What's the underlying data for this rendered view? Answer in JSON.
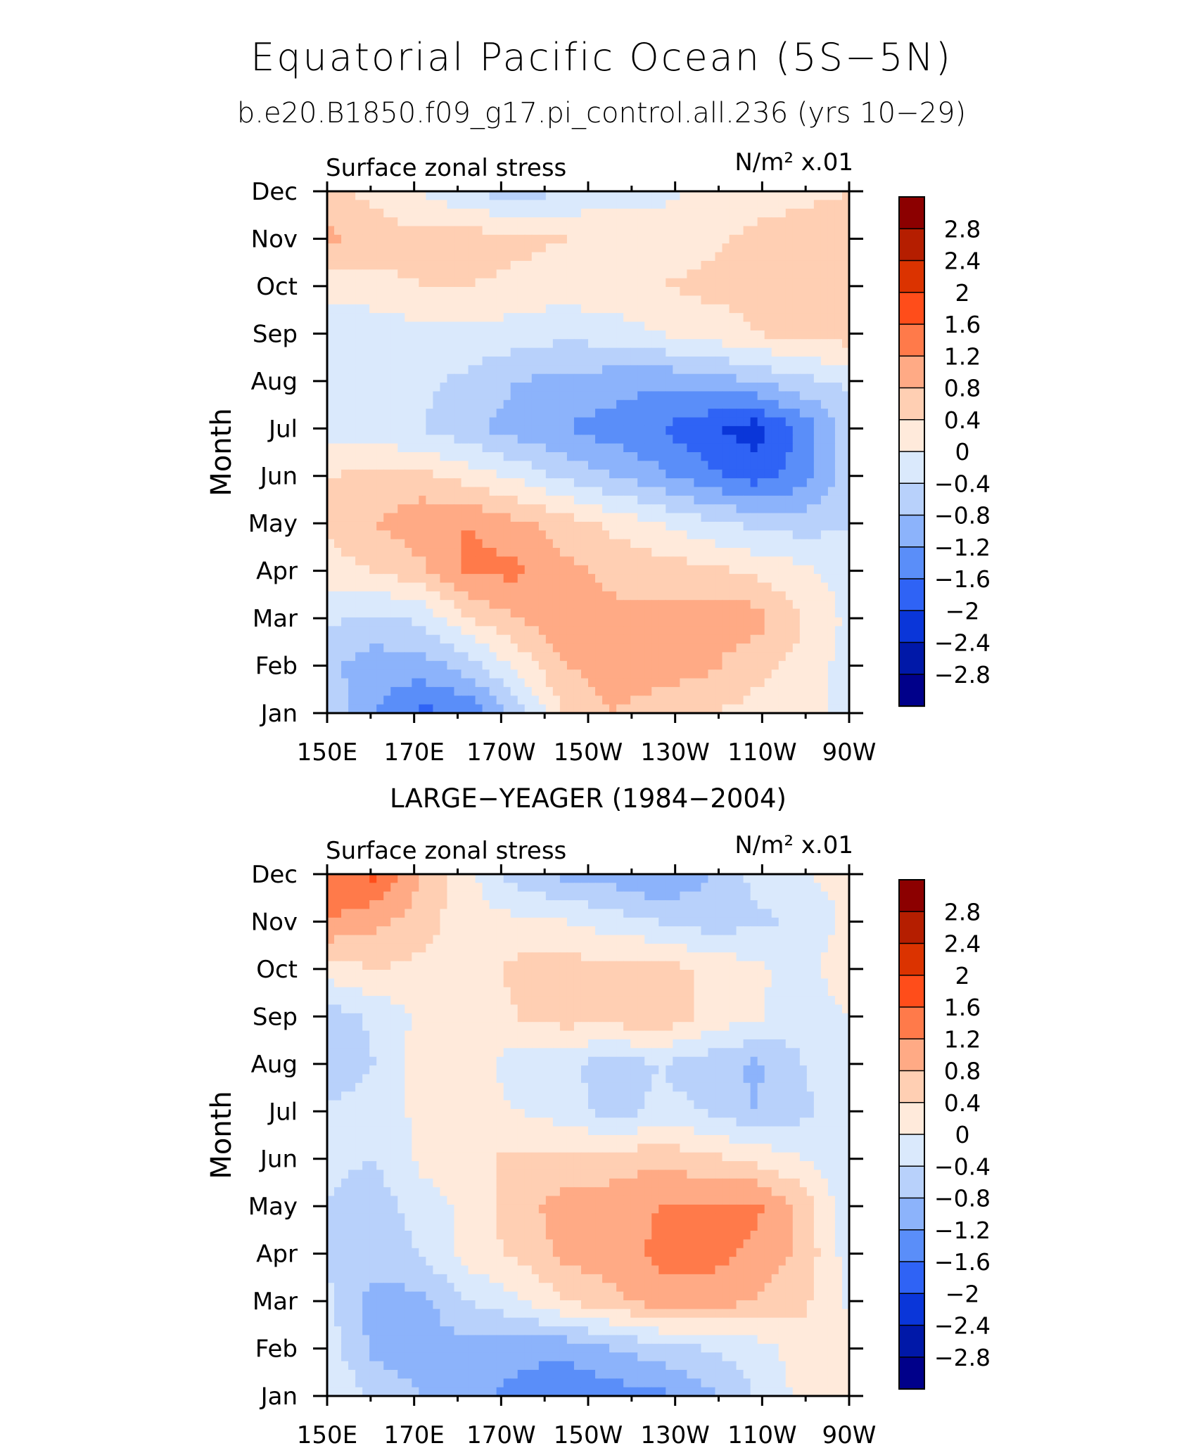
{
  "figure": {
    "title": "Equatorial Pacific Ocean (5S−5N)",
    "subtitle": "b.e20.B1850.f09_g17.pi_control.all.236 (yrs 10−29)"
  },
  "colorbar": {
    "levels": [
      "2.8",
      "2.4",
      "2",
      "1.6",
      "1.2",
      "0.8",
      "0.4",
      "0",
      "−0.4",
      "−0.8",
      "−1.2",
      "−1.6",
      "−2",
      "−2.4",
      "−2.8"
    ],
    "colors": [
      "#8c0000",
      "#b51e00",
      "#db3300",
      "#ff4d1a",
      "#ff7a4a",
      "#ffaa85",
      "#ffcfb3",
      "#ffeadb",
      "#dae9fc",
      "#b8d1fb",
      "#8cb3fb",
      "#5a8ef9",
      "#2f63f5",
      "#0a36d9",
      "#0018a8",
      "#00008a"
    ]
  },
  "chart_data": [
    {
      "type": "heatmap",
      "panel_title": "",
      "left_label": "Surface zonal stress",
      "right_label": "N/m² x.01",
      "xlabel": "",
      "ylabel": "Month",
      "x_ticks": [
        "150E",
        "170E",
        "170W",
        "150W",
        "130W",
        "110W",
        "90W"
      ],
      "y_ticks": [
        "Jan",
        "Feb",
        "Mar",
        "Apr",
        "May",
        "Jun",
        "Jul",
        "Aug",
        "Sep",
        "Oct",
        "Nov",
        "Dec"
      ],
      "x_lon_range": [
        150,
        270
      ],
      "contour_levels": [
        -2.8,
        -2.4,
        -2,
        -1.6,
        -1.2,
        -0.8,
        -0.4,
        0,
        0.4,
        0.8,
        1.2,
        1.6,
        2,
        2.4,
        2.8
      ],
      "values": [
        [
          -0.5,
          -1.2,
          -1.7,
          -1.5,
          -0.6,
          0.4,
          0.8,
          0.6,
          0.4,
          0.3,
          0.2,
          -0.2
        ],
        [
          -0.7,
          -1.0,
          -1.0,
          -0.6,
          0.1,
          0.8,
          1.0,
          1.0,
          0.9,
          0.5,
          0.3,
          -0.2
        ],
        [
          -0.3,
          -0.5,
          -0.3,
          0.4,
          0.8,
          1.1,
          0.9,
          0.9,
          1.0,
          1.0,
          0.4,
          -0.1
        ],
        [
          0.2,
          0.4,
          0.7,
          1.3,
          1.3,
          0.9,
          0.7,
          0.6,
          0.5,
          0.3,
          0.1,
          -0.2
        ],
        [
          0.5,
          0.8,
          1.1,
          1.2,
          0.9,
          0.6,
          0.3,
          0.0,
          -0.3,
          -0.5,
          -0.6,
          -0.4
        ],
        [
          0.4,
          0.5,
          0.5,
          0.2,
          -0.1,
          -0.5,
          -0.8,
          -1.1,
          -1.5,
          -1.8,
          -1.4,
          -0.6
        ],
        [
          -0.2,
          -0.3,
          -0.4,
          -0.7,
          -1.0,
          -1.2,
          -1.4,
          -1.6,
          -1.9,
          -2.2,
          -1.5,
          -0.6
        ],
        [
          -0.4,
          -0.4,
          -0.3,
          -0.5,
          -0.8,
          -0.9,
          -1.0,
          -1.1,
          -1.0,
          -0.8,
          -0.5,
          -0.3
        ],
        [
          -0.4,
          -0.3,
          -0.1,
          -0.1,
          -0.2,
          -0.3,
          -0.2,
          0.0,
          0.2,
          0.4,
          0.5,
          0.6
        ],
        [
          0.2,
          0.3,
          0.4,
          0.4,
          0.3,
          0.2,
          0.3,
          0.4,
          0.5,
          0.5,
          0.6,
          0.6
        ],
        [
          0.9,
          0.6,
          0.5,
          0.6,
          0.5,
          0.4,
          0.4,
          0.2,
          0.3,
          0.5,
          0.6,
          0.6
        ],
        [
          0.5,
          0.3,
          0.0,
          -0.4,
          -0.6,
          -0.4,
          -0.2,
          -0.1,
          0.1,
          0.2,
          0.3,
          0.4
        ]
      ]
    },
    {
      "type": "heatmap",
      "panel_title": "LARGE−YEAGER (1984−2004)",
      "left_label": "Surface zonal stress",
      "right_label": "N/m² x.01",
      "xlabel": "",
      "ylabel": "Month",
      "x_ticks": [
        "150E",
        "170E",
        "170W",
        "150W",
        "130W",
        "110W",
        "90W"
      ],
      "y_ticks": [
        "Jan",
        "Feb",
        "Mar",
        "Apr",
        "May",
        "Jun",
        "Jul",
        "Aug",
        "Sep",
        "Oct",
        "Nov",
        "Dec"
      ],
      "x_lon_range": [
        150,
        270
      ],
      "contour_levels": [
        -2.8,
        -2.4,
        -2,
        -1.6,
        -1.2,
        -0.8,
        -0.4,
        0,
        0.4,
        0.8,
        1.2,
        1.6,
        2,
        2.4,
        2.8
      ],
      "values": [
        [
          0.0,
          -0.5,
          -0.8,
          -1.1,
          -1.3,
          -1.5,
          -1.4,
          -1.3,
          -0.9,
          -0.4,
          0.1,
          0.1
        ],
        [
          -0.2,
          -0.9,
          -1.0,
          -0.9,
          -1.1,
          -1.1,
          -0.8,
          -0.6,
          -0.4,
          -0.2,
          0.2,
          0.2
        ],
        [
          -0.3,
          -1.0,
          -0.9,
          -0.4,
          -0.1,
          0.4,
          0.7,
          1.0,
          1.0,
          0.8,
          0.5,
          -0.1
        ],
        [
          -0.5,
          -0.6,
          -0.4,
          0.2,
          0.5,
          0.9,
          1.0,
          1.3,
          1.4,
          1.1,
          0.7,
          -0.2
        ],
        [
          -0.4,
          -0.6,
          -0.2,
          0.1,
          0.6,
          1.0,
          1.0,
          1.2,
          1.3,
          1.3,
          0.7,
          -0.3
        ],
        [
          -0.3,
          -0.4,
          0.1,
          0.3,
          0.5,
          0.5,
          0.6,
          0.7,
          0.5,
          0.3,
          0.0,
          -0.3
        ],
        [
          -0.3,
          -0.2,
          0.1,
          0.2,
          0.0,
          -0.2,
          -0.6,
          -0.3,
          -0.4,
          -0.8,
          -0.5,
          -0.2
        ],
        [
          -0.8,
          -0.4,
          0.2,
          0.2,
          -0.2,
          -0.3,
          -0.6,
          -0.4,
          -0.6,
          -0.9,
          -0.4,
          -0.1
        ],
        [
          -0.6,
          -0.3,
          0.1,
          0.1,
          0.4,
          0.6,
          0.6,
          0.8,
          0.3,
          0.1,
          -0.3,
          0.0
        ],
        [
          0.2,
          0.4,
          0.3,
          0.2,
          0.5,
          0.6,
          0.5,
          0.6,
          0.3,
          0.1,
          -0.2,
          0.3
        ],
        [
          1.2,
          0.9,
          0.6,
          0.1,
          0.1,
          0.0,
          -0.2,
          -0.4,
          -0.6,
          -0.5,
          -0.3,
          0.1
        ],
        [
          1.5,
          1.7,
          0.8,
          0.1,
          -0.6,
          -0.9,
          -1.0,
          -1.3,
          -0.8,
          -0.3,
          0.0,
          0.1
        ]
      ]
    }
  ]
}
